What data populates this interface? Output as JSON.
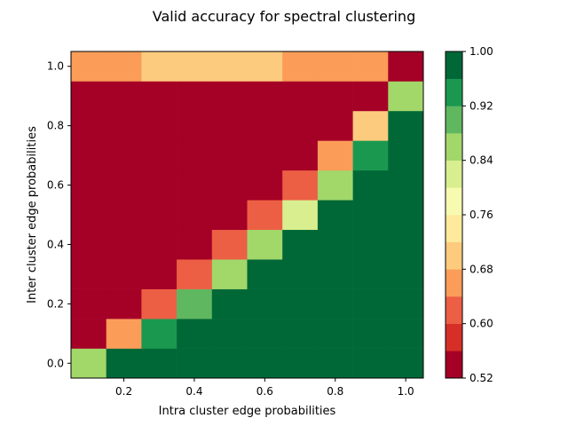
{
  "chart_data": {
    "type": "heatmap",
    "title": "Valid accuracy for spectral clustering",
    "xlabel": "Intra cluster edge probabilities",
    "ylabel": "Inter cluster edge probabilities",
    "x_values": [
      0.1,
      0.2,
      0.3,
      0.4,
      0.5,
      0.6,
      0.7,
      0.8,
      0.9,
      1.0
    ],
    "y_values": [
      0.0,
      0.1,
      0.2,
      0.3,
      0.4,
      0.5,
      0.6,
      0.7,
      0.8,
      0.9,
      1.0
    ],
    "xlim": [
      0.05,
      1.05
    ],
    "ylim": [
      -0.05,
      1.05
    ],
    "x_ticks": [
      "0.2",
      "0.4",
      "0.6",
      "0.8",
      "1.0"
    ],
    "y_ticks": [
      "0.0",
      "0.2",
      "0.4",
      "0.6",
      "0.8",
      "1.0"
    ],
    "colorbar": {
      "colormap": "RdYlGn",
      "range": [
        0.52,
        1.0
      ],
      "ticks": [
        "0.52",
        "0.60",
        "0.68",
        "0.76",
        "0.84",
        "0.92",
        "1.00"
      ],
      "levels": [
        {
          "range": [
            0.52,
            0.56
          ],
          "color": "#a50026"
        },
        {
          "range": [
            0.56,
            0.6
          ],
          "color": "#d62f27"
        },
        {
          "range": [
            0.6,
            0.64
          ],
          "color": "#ec5f44"
        },
        {
          "range": [
            0.64,
            0.68
          ],
          "color": "#fb9c59"
        },
        {
          "range": [
            0.68,
            0.72
          ],
          "color": "#fdcb7e"
        },
        {
          "range": [
            0.72,
            0.76
          ],
          "color": "#fee99c"
        },
        {
          "range": [
            0.76,
            0.8
          ],
          "color": "#f7fbb0"
        },
        {
          "range": [
            0.8,
            0.84
          ],
          "color": "#d9ee8f"
        },
        {
          "range": [
            0.84,
            0.88
          ],
          "color": "#a2d76a"
        },
        {
          "range": [
            0.88,
            0.92
          ],
          "color": "#5fb760"
        },
        {
          "range": [
            0.92,
            0.96
          ],
          "color": "#1a9850"
        },
        {
          "range": [
            0.96,
            1.0
          ],
          "color": "#006837"
        }
      ]
    },
    "values": [
      [
        0.86,
        1.0,
        1.0,
        1.0,
        1.0,
        1.0,
        1.0,
        1.0,
        1.0,
        1.0
      ],
      [
        0.52,
        0.66,
        0.94,
        1.0,
        1.0,
        1.0,
        1.0,
        1.0,
        1.0,
        1.0
      ],
      [
        0.52,
        0.52,
        0.62,
        0.9,
        1.0,
        1.0,
        1.0,
        1.0,
        1.0,
        1.0
      ],
      [
        0.52,
        0.52,
        0.52,
        0.62,
        0.86,
        1.0,
        1.0,
        1.0,
        1.0,
        1.0
      ],
      [
        0.52,
        0.52,
        0.52,
        0.52,
        0.62,
        0.86,
        1.0,
        1.0,
        1.0,
        1.0
      ],
      [
        0.52,
        0.52,
        0.52,
        0.52,
        0.52,
        0.62,
        0.82,
        1.0,
        1.0,
        1.0
      ],
      [
        0.52,
        0.52,
        0.52,
        0.52,
        0.52,
        0.52,
        0.62,
        0.86,
        1.0,
        1.0
      ],
      [
        0.52,
        0.52,
        0.52,
        0.52,
        0.52,
        0.52,
        0.52,
        0.66,
        0.94,
        1.0
      ],
      [
        0.52,
        0.52,
        0.52,
        0.52,
        0.52,
        0.52,
        0.52,
        0.52,
        0.7,
        1.0
      ],
      [
        0.52,
        0.52,
        0.52,
        0.52,
        0.52,
        0.52,
        0.52,
        0.52,
        0.52,
        0.86
      ],
      [
        0.66,
        0.66,
        0.7,
        0.7,
        0.7,
        0.7,
        0.66,
        0.66,
        0.66,
        0.52
      ]
    ]
  }
}
